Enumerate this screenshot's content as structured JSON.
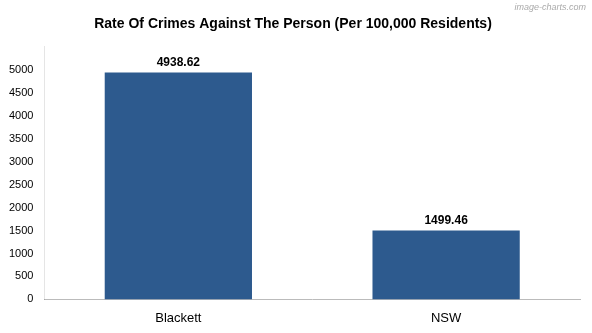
{
  "chart_data": {
    "type": "bar",
    "title": "Rate Of Crimes Against The Person (Per 100,000 Residents)",
    "annotations": [
      "image-charts.com"
    ],
    "categories": [
      "Blackett",
      "NSW"
    ],
    "values": [
      4938.62,
      1499.46
    ],
    "color": "#2d5a8e",
    "ylim": [
      0,
      5500
    ],
    "yticks": [
      0,
      500,
      1000,
      1500,
      2000,
      2500,
      3000,
      3500,
      4000,
      4500,
      5000
    ],
    "grid": false,
    "data_labels": true
  }
}
